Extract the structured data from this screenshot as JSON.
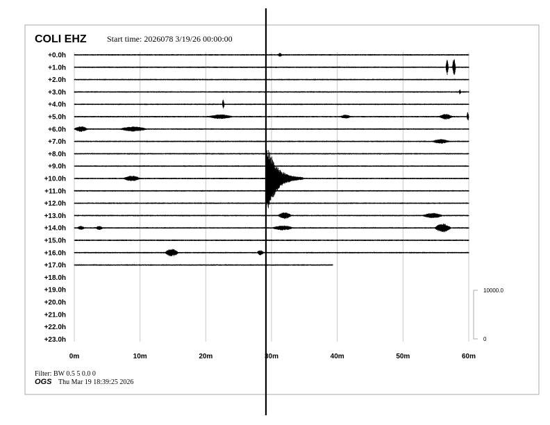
{
  "header": {
    "station": "COLI EHZ",
    "start_time": "Start time: 2026078  3/19/26 00:00:00"
  },
  "footer": {
    "filter": "Filter: BW 0.5 5 0.0 0",
    "agency": "OGS",
    "generated": "Thu Mar 19 18:39:25 2026"
  },
  "scale_bar": {
    "top_label": "10000.0",
    "bottom_label": "0",
    "top_value": 10000,
    "bottom_value": 0
  },
  "colors": {
    "trace": "#000000",
    "grid": "#c8c8c8",
    "frame": "#aaaaaa",
    "marker": "#000000"
  },
  "chart_data": {
    "type": "line",
    "subtype": "helicorder",
    "title": "COLI EHZ",
    "xlabel": "",
    "ylabel": "",
    "xlim": [
      0,
      60
    ],
    "x_unit": "minutes",
    "x_ticks": [
      "0m",
      "10m",
      "20m",
      "30m",
      "40m",
      "50m",
      "60m"
    ],
    "row_labels": [
      "+0.0h",
      "+1.0h",
      "+2.0h",
      "+3.0h",
      "+4.0h",
      "+5.0h",
      "+6.0h",
      "+7.0h",
      "+8.0h",
      "+9.0h",
      "+10.0h",
      "+11.0h",
      "+12.0h",
      "+13.0h",
      "+14.0h",
      "+15.0h",
      "+16.0h",
      "+17.0h",
      "+18.0h",
      "+19.0h",
      "+20.0h",
      "+21.0h",
      "+22.0h",
      "+23.0h"
    ],
    "grid": true,
    "last_sample_minute_row17": 39.3,
    "background_noise_counts": 150,
    "marker_minute": 29.15,
    "events": [
      {
        "row": 0,
        "minute": 31.0,
        "amplitude": 300,
        "duration": 0.6
      },
      {
        "row": 1,
        "minute": 56.5,
        "amplitude": 1500,
        "duration": 0.4
      },
      {
        "row": 1,
        "minute": 57.5,
        "amplitude": 1700,
        "duration": 0.5
      },
      {
        "row": 3,
        "minute": 58.5,
        "amplitude": 400,
        "duration": 0.3
      },
      {
        "row": 4,
        "minute": 22.5,
        "amplitude": 900,
        "duration": 0.3
      },
      {
        "row": 5,
        "minute": 20.5,
        "amplitude": 350,
        "duration": 3.5
      },
      {
        "row": 5,
        "minute": 40.5,
        "amplitude": 300,
        "duration": 1.5
      },
      {
        "row": 5,
        "minute": 55.5,
        "amplitude": 450,
        "duration": 2.0
      },
      {
        "row": 5,
        "minute": 59.7,
        "amplitude": 800,
        "duration": 0.3
      },
      {
        "row": 6,
        "minute": 0.0,
        "amplitude": 450,
        "duration": 2.0
      },
      {
        "row": 6,
        "minute": 7.0,
        "amplitude": 400,
        "duration": 4.0
      },
      {
        "row": 7,
        "minute": 54.5,
        "amplitude": 350,
        "duration": 2.5
      },
      {
        "row": 10,
        "minute": 7.5,
        "amplitude": 450,
        "duration": 2.5
      },
      {
        "row": 10,
        "minute": 29.3,
        "amplitude": 7600,
        "duration": 5.5
      },
      {
        "row": 13,
        "minute": 31.0,
        "amplitude": 600,
        "duration": 2.0
      },
      {
        "row": 13,
        "minute": 53.0,
        "amplitude": 400,
        "duration": 3.0
      },
      {
        "row": 14,
        "minute": 3.3,
        "amplitude": 300,
        "duration": 1.0
      },
      {
        "row": 14,
        "minute": 0.5,
        "amplitude": 300,
        "duration": 1.0
      },
      {
        "row": 14,
        "minute": 54.8,
        "amplitude": 800,
        "duration": 2.5
      },
      {
        "row": 14,
        "minute": 30.2,
        "amplitude": 400,
        "duration": 3.0
      },
      {
        "row": 16,
        "minute": 13.8,
        "amplitude": 700,
        "duration": 2.0
      },
      {
        "row": 16,
        "minute": 27.8,
        "amplitude": 400,
        "duration": 1.0
      }
    ]
  }
}
